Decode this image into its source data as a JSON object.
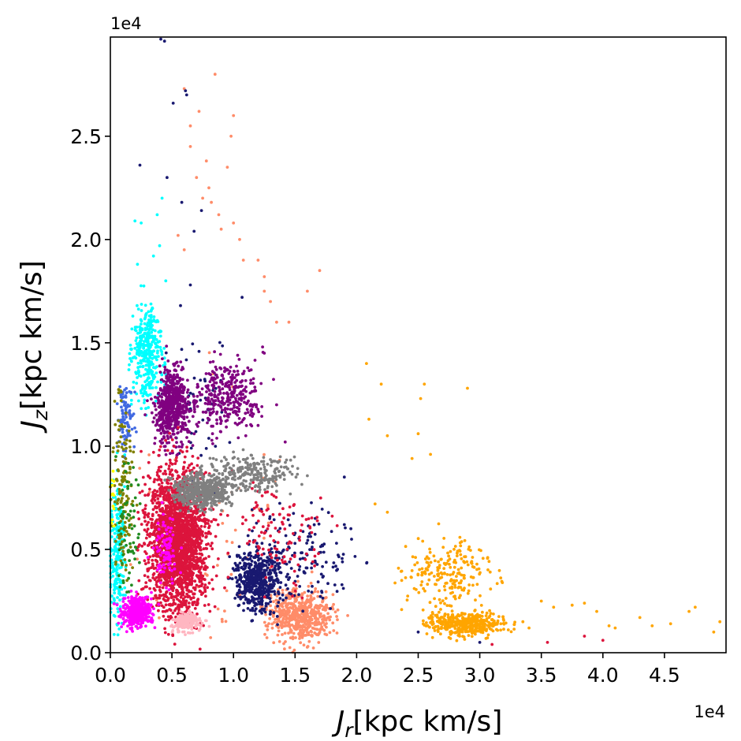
{
  "chart_data": {
    "type": "scatter",
    "title": "",
    "xlabel_main": "J",
    "xlabel_sub": "r",
    "xlabel_unit": "[kpc km/s]",
    "ylabel_main": "J",
    "ylabel_sub": "z",
    "ylabel_unit": "[kpc km/s]",
    "x_offset_text": "1e4",
    "y_offset_text": "1e4",
    "x_scale": 10000,
    "y_scale": 10000,
    "xlim": [
      0,
      5.0
    ],
    "ylim": [
      0,
      2.98
    ],
    "x_ticks": [
      0.0,
      0.5,
      1.0,
      1.5,
      2.0,
      2.5,
      3.0,
      3.5,
      4.0,
      4.5
    ],
    "x_tick_labels": [
      "0.0",
      "0.5",
      "1.0",
      "1.5",
      "2.0",
      "2.5",
      "3.0",
      "3.5",
      "4.0",
      "4.5"
    ],
    "y_ticks": [
      0.0,
      0.5,
      1.0,
      1.5,
      2.0,
      2.5
    ],
    "y_tick_labels": [
      "0.0",
      "0.5",
      "1.0",
      "1.5",
      "2.0",
      "2.5"
    ],
    "grid": false,
    "legend": false,
    "series": [
      {
        "color": "#ff8c69",
        "clusters": [
          {
            "cx": 1.55,
            "cy": 0.18,
            "sx": 0.22,
            "sy": 0.1,
            "n": 550
          },
          {
            "cx": 0.85,
            "cy": 0.6,
            "sx": 0.5,
            "sy": 0.6,
            "n": 60
          }
        ],
        "points": [
          [
            0.6,
            2.73
          ],
          [
            0.85,
            2.8
          ],
          [
            0.72,
            2.62
          ],
          [
            0.65,
            2.45
          ],
          [
            0.78,
            2.38
          ],
          [
            0.7,
            2.3
          ],
          [
            0.8,
            2.25
          ],
          [
            0.95,
            2.35
          ],
          [
            1.0,
            2.6
          ],
          [
            0.98,
            2.5
          ],
          [
            0.88,
            2.12
          ],
          [
            0.9,
            2.05
          ],
          [
            0.6,
            1.95
          ],
          [
            0.55,
            2.02
          ],
          [
            1.05,
            2.0
          ],
          [
            1.08,
            1.9
          ],
          [
            1.2,
            1.9
          ],
          [
            1.25,
            1.82
          ],
          [
            1.3,
            1.7
          ],
          [
            1.35,
            1.6
          ],
          [
            1.45,
            1.6
          ],
          [
            1.7,
            1.85
          ],
          [
            1.6,
            1.75
          ],
          [
            1.25,
            1.75
          ],
          [
            0.65,
            2.55
          ],
          [
            0.75,
            2.2
          ],
          [
            0.82,
            2.18
          ],
          [
            1.0,
            2.08
          ]
        ]
      },
      {
        "color": "#191970",
        "clusters": [
          {
            "cx": 1.2,
            "cy": 0.35,
            "sx": 0.15,
            "sy": 0.12,
            "n": 520
          },
          {
            "cx": 1.55,
            "cy": 0.45,
            "sx": 0.35,
            "sy": 0.22,
            "n": 160
          },
          {
            "cx": 0.7,
            "cy": 1.2,
            "sx": 0.25,
            "sy": 0.3,
            "n": 60
          }
        ],
        "points": [
          [
            0.41,
            2.97
          ],
          [
            0.44,
            2.96
          ],
          [
            0.62,
            2.7
          ],
          [
            0.61,
            2.72
          ],
          [
            0.51,
            2.66
          ],
          [
            0.24,
            2.36
          ],
          [
            0.46,
            2.3
          ],
          [
            0.65,
            1.78
          ],
          [
            0.57,
            1.68
          ],
          [
            1.07,
            1.72
          ],
          [
            0.58,
            2.18
          ],
          [
            0.74,
            2.14
          ],
          [
            0.68,
            2.04
          ],
          [
            2.5,
            0.1
          ],
          [
            3.0,
            0.05
          ],
          [
            1.9,
            0.85
          ],
          [
            1.9,
            0.62
          ]
        ]
      },
      {
        "color": "#00ffff",
        "clusters": [
          {
            "cx": 0.3,
            "cy": 1.45,
            "sx": 0.1,
            "sy": 0.2,
            "n": 360
          },
          {
            "cx": 0.06,
            "cy": 0.5,
            "sx": 0.05,
            "sy": 0.3,
            "n": 240
          }
        ],
        "points": [
          [
            0.2,
            2.09
          ],
          [
            0.25,
            2.08
          ],
          [
            0.42,
            2.2
          ],
          [
            0.38,
            2.12
          ],
          [
            0.4,
            1.97
          ],
          [
            0.45,
            1.8
          ],
          [
            0.22,
            1.88
          ],
          [
            0.35,
            1.92
          ]
        ]
      },
      {
        "color": "#800080",
        "clusters": [
          {
            "cx": 0.5,
            "cy": 1.2,
            "sx": 0.12,
            "sy": 0.15,
            "n": 600
          },
          {
            "cx": 0.95,
            "cy": 1.25,
            "sx": 0.22,
            "sy": 0.15,
            "n": 320
          }
        ],
        "points": [
          [
            1.25,
            1.45
          ],
          [
            1.35,
            1.2
          ],
          [
            1.2,
            1.1
          ],
          [
            1.42,
            1.02
          ],
          [
            1.1,
            1.05
          ]
        ]
      },
      {
        "color": "#4169e1",
        "clusters": [
          {
            "cx": 0.12,
            "cy": 1.15,
            "sx": 0.06,
            "sy": 0.12,
            "n": 90
          }
        ],
        "points": []
      },
      {
        "color": "#808000",
        "clusters": [
          {
            "cx": 0.1,
            "cy": 0.8,
            "sx": 0.07,
            "sy": 0.35,
            "n": 140
          }
        ],
        "points": []
      },
      {
        "color": "#228b22",
        "clusters": [
          {
            "cx": 0.15,
            "cy": 0.6,
            "sx": 0.08,
            "sy": 0.3,
            "n": 70
          }
        ],
        "points": []
      },
      {
        "color": "#ffff00",
        "clusters": [
          {
            "cx": 0.02,
            "cy": 0.75,
            "sx": 0.015,
            "sy": 0.1,
            "n": 12
          }
        ],
        "points": []
      },
      {
        "color": "#dc143c",
        "clusters": [
          {
            "cx": 0.55,
            "cy": 0.55,
            "sx": 0.2,
            "sy": 0.28,
            "n": 2200
          },
          {
            "cx": 1.4,
            "cy": 0.58,
            "sx": 0.35,
            "sy": 0.2,
            "n": 120
          }
        ],
        "points": [
          [
            3.55,
            0.05
          ],
          [
            4.0,
            0.06
          ],
          [
            3.85,
            0.08
          ],
          [
            3.1,
            0.04
          ]
        ]
      },
      {
        "color": "#808080",
        "clusters": [
          {
            "cx": 0.75,
            "cy": 0.78,
            "sx": 0.18,
            "sy": 0.07,
            "n": 500
          },
          {
            "cx": 1.15,
            "cy": 0.87,
            "sx": 0.3,
            "sy": 0.07,
            "n": 260
          }
        ],
        "points": []
      },
      {
        "color": "#ffa500",
        "clusters": [
          {
            "cx": 2.9,
            "cy": 0.14,
            "sx": 0.25,
            "sy": 0.05,
            "n": 420
          },
          {
            "cx": 2.75,
            "cy": 0.38,
            "sx": 0.3,
            "sy": 0.15,
            "n": 220
          }
        ],
        "points": [
          [
            2.08,
            1.4
          ],
          [
            2.1,
            1.13
          ],
          [
            2.2,
            1.3
          ],
          [
            2.25,
            1.05
          ],
          [
            2.55,
            1.3
          ],
          [
            2.52,
            1.23
          ],
          [
            2.9,
            1.28
          ],
          [
            2.5,
            1.06
          ],
          [
            2.45,
            0.94
          ],
          [
            2.6,
            0.96
          ],
          [
            2.25,
            0.68
          ],
          [
            2.15,
            0.72
          ],
          [
            3.5,
            0.25
          ],
          [
            3.6,
            0.22
          ],
          [
            3.75,
            0.23
          ],
          [
            3.85,
            0.24
          ],
          [
            4.05,
            0.13
          ],
          [
            4.3,
            0.17
          ],
          [
            4.4,
            0.13
          ],
          [
            4.55,
            0.14
          ],
          [
            4.7,
            0.2
          ],
          [
            4.75,
            0.22
          ],
          [
            4.9,
            0.1
          ],
          [
            4.95,
            0.15
          ],
          [
            4.1,
            0.12
          ],
          [
            3.95,
            0.2
          ],
          [
            3.35,
            0.15
          ],
          [
            3.4,
            0.12
          ]
        ]
      },
      {
        "color": "#ff00ff",
        "clusters": [
          {
            "cx": 0.22,
            "cy": 0.2,
            "sx": 0.1,
            "sy": 0.06,
            "n": 420
          },
          {
            "cx": 0.45,
            "cy": 0.5,
            "sx": 0.08,
            "sy": 0.12,
            "n": 90
          }
        ],
        "points": []
      },
      {
        "color": "#ffb6c1",
        "clusters": [
          {
            "cx": 0.62,
            "cy": 0.15,
            "sx": 0.1,
            "sy": 0.04,
            "n": 200
          }
        ],
        "points": []
      }
    ]
  }
}
